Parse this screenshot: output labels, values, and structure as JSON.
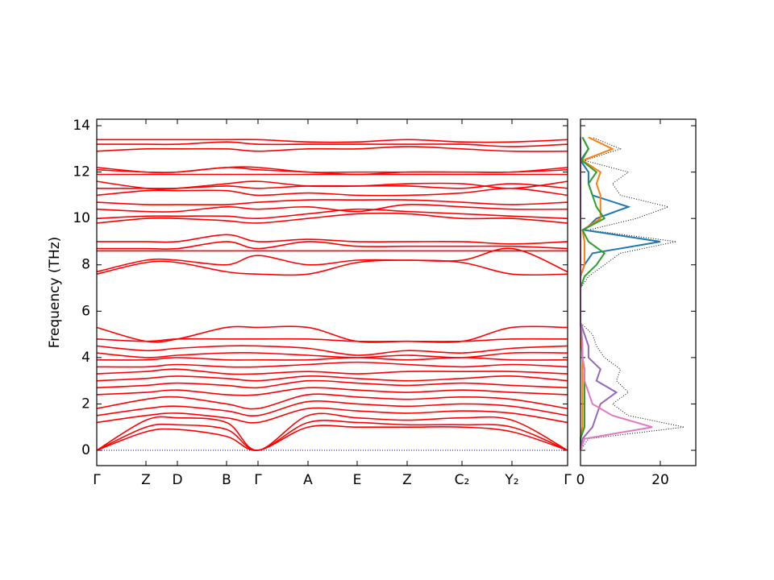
{
  "chart_data": [
    {
      "type": "band",
      "ylabel": "Frequency (THz)",
      "ylim": [
        -0.66,
        14.28
      ],
      "yticks": [
        0,
        2,
        4,
        6,
        8,
        10,
        12,
        14
      ],
      "xlim": [
        0,
        584
      ],
      "xticks": [
        {
          "value": 0,
          "label": "Γ"
        },
        {
          "value": 61,
          "label": "Z"
        },
        {
          "value": 100,
          "label": "D"
        },
        {
          "value": 161,
          "label": "B"
        },
        {
          "value": 200,
          "label": "Γ"
        },
        {
          "value": 262,
          "label": "A"
        },
        {
          "value": 323,
          "label": "E"
        },
        {
          "value": 385,
          "label": "Z"
        },
        {
          "value": 453,
          "label": "C₂"
        },
        {
          "value": 515,
          "label": "Y₂"
        },
        {
          "value": 584,
          "label": "Γ"
        }
      ],
      "x": [
        0,
        61,
        100,
        161,
        200,
        262,
        323,
        385,
        453,
        515,
        584
      ],
      "color": "#ff0000",
      "zero_line": {
        "value": 0,
        "color": "#0000ff"
      },
      "bands": [
        [
          0,
          0.8,
          0.9,
          0.6,
          0,
          1.0,
          1.0,
          1.0,
          1.0,
          0.8,
          0
        ],
        [
          0,
          1.0,
          1.1,
          0.9,
          0,
          1.2,
          1.2,
          1.1,
          1.1,
          1.0,
          0
        ],
        [
          0,
          1.3,
          1.4,
          1.2,
          0,
          1.5,
          1.4,
          1.3,
          1.4,
          1.3,
          0
        ],
        [
          1.2,
          1.5,
          1.6,
          1.4,
          1.2,
          1.8,
          1.7,
          1.6,
          1.7,
          1.6,
          1.2
        ],
        [
          1.5,
          1.8,
          1.9,
          1.7,
          1.5,
          2.1,
          2.0,
          1.9,
          2.0,
          1.9,
          1.5
        ],
        [
          1.8,
          2.2,
          2.3,
          2.0,
          1.8,
          2.4,
          2.3,
          2.2,
          2.3,
          2.2,
          1.8
        ],
        [
          2.4,
          2.5,
          2.6,
          2.4,
          2.4,
          2.7,
          2.6,
          2.5,
          2.6,
          2.5,
          2.4
        ],
        [
          2.7,
          2.8,
          2.9,
          2.8,
          2.7,
          3.0,
          2.9,
          2.8,
          2.9,
          2.8,
          2.7
        ],
        [
          3.0,
          3.1,
          3.2,
          3.1,
          3.0,
          3.2,
          3.1,
          3.0,
          3.1,
          3.2,
          3.0
        ],
        [
          3.3,
          3.4,
          3.5,
          3.3,
          3.3,
          3.4,
          3.3,
          3.4,
          3.4,
          3.4,
          3.3
        ],
        [
          3.6,
          3.6,
          3.7,
          3.6,
          3.6,
          3.7,
          3.8,
          3.7,
          3.6,
          3.7,
          3.6
        ],
        [
          3.9,
          3.9,
          4.0,
          3.9,
          3.9,
          3.9,
          4.0,
          3.9,
          4.0,
          3.9,
          3.9
        ],
        [
          4.2,
          4.0,
          4.1,
          4.2,
          4.2,
          4.1,
          4.0,
          4.1,
          4.0,
          4.2,
          4.2
        ],
        [
          4.5,
          4.3,
          4.4,
          4.5,
          4.5,
          4.4,
          4.1,
          4.3,
          4.2,
          4.4,
          4.5
        ],
        [
          4.8,
          4.7,
          4.8,
          4.8,
          4.8,
          4.8,
          4.7,
          4.7,
          4.7,
          4.8,
          4.8
        ],
        [
          5.3,
          4.7,
          4.8,
          5.3,
          5.3,
          5.3,
          4.7,
          4.7,
          4.7,
          5.3,
          5.3
        ],
        [
          7.6,
          8.1,
          8.1,
          7.7,
          7.6,
          7.6,
          8.1,
          8.2,
          8.1,
          7.6,
          7.6
        ],
        [
          7.7,
          8.2,
          8.2,
          8.0,
          8.4,
          8.0,
          8.2,
          8.2,
          8.2,
          8.7,
          7.7
        ],
        [
          8.6,
          8.6,
          8.6,
          8.6,
          8.6,
          8.6,
          8.6,
          8.6,
          8.6,
          8.6,
          8.6
        ],
        [
          8.7,
          8.7,
          8.7,
          9.0,
          8.7,
          9.0,
          8.8,
          8.8,
          8.8,
          8.8,
          8.7
        ],
        [
          9.0,
          9.0,
          9.0,
          9.3,
          9.0,
          9.1,
          9.0,
          9.0,
          9.0,
          8.9,
          9.0
        ],
        [
          9.8,
          10.0,
          10.0,
          9.9,
          9.8,
          10.0,
          10.2,
          10.2,
          10.0,
          10.0,
          9.8
        ],
        [
          10.0,
          10.1,
          10.1,
          10.1,
          10.0,
          10.2,
          10.4,
          10.3,
          10.2,
          10.1,
          10.0
        ],
        [
          10.4,
          10.3,
          10.3,
          10.5,
          10.4,
          10.5,
          10.3,
          10.6,
          10.5,
          10.4,
          10.4
        ],
        [
          10.7,
          10.6,
          10.6,
          10.6,
          10.7,
          10.8,
          10.8,
          10.8,
          10.7,
          10.6,
          10.7
        ],
        [
          11.0,
          11.2,
          11.2,
          11.2,
          11.0,
          11.1,
          11.0,
          11.0,
          11.1,
          11.3,
          11.0
        ],
        [
          11.3,
          11.3,
          11.3,
          11.4,
          11.3,
          11.4,
          11.4,
          11.4,
          11.3,
          11.5,
          11.3
        ],
        [
          11.6,
          11.3,
          11.3,
          11.5,
          11.6,
          11.4,
          11.4,
          11.5,
          11.5,
          11.3,
          11.6
        ],
        [
          11.9,
          11.9,
          11.9,
          11.9,
          11.9,
          11.9,
          11.9,
          11.9,
          11.9,
          11.9,
          11.9
        ],
        [
          12.1,
          12.0,
          12.0,
          12.2,
          12.1,
          12.0,
          11.9,
          12.0,
          12.0,
          12.0,
          12.1
        ],
        [
          12.2,
          12.0,
          12.0,
          12.2,
          12.2,
          12.0,
          12.0,
          12.0,
          12.0,
          12.0,
          12.2
        ],
        [
          12.9,
          13.0,
          13.0,
          13.0,
          12.9,
          13.0,
          13.0,
          13.1,
          13.0,
          12.9,
          12.9
        ],
        [
          13.2,
          13.2,
          13.2,
          13.3,
          13.2,
          13.2,
          13.2,
          13.2,
          13.2,
          13.1,
          13.2
        ],
        [
          13.4,
          13.4,
          13.4,
          13.4,
          13.4,
          13.3,
          13.3,
          13.4,
          13.3,
          13.3,
          13.4
        ]
      ]
    },
    {
      "type": "dos",
      "xlim": [
        0,
        28.9
      ],
      "xticks": [
        0,
        20
      ],
      "ylim": [
        -0.66,
        14.28
      ],
      "yticks": [
        0,
        2,
        4,
        6,
        8,
        10,
        12,
        14
      ],
      "frequencies": [
        0,
        0.5,
        1,
        1.5,
        2,
        2.5,
        3,
        3.5,
        4,
        4.5,
        5,
        5.5,
        6,
        6.5,
        7,
        7.5,
        8,
        8.5,
        9,
        9.5,
        10,
        10.5,
        11,
        11.5,
        12,
        12.5,
        13,
        13.5
      ],
      "series": [
        {
          "color": "#000000",
          "dotted": true,
          "values": [
            0,
            2,
            26,
            12,
            8,
            12,
            9,
            10,
            6,
            4,
            3,
            0,
            0,
            0,
            0,
            2,
            6,
            10,
            24,
            2,
            14,
            22,
            10,
            8,
            12,
            1,
            10,
            3
          ]
        },
        {
          "color": "#1f77b4",
          "values": [
            0,
            0,
            0.5,
            0.5,
            0.5,
            0.5,
            0.5,
            0.5,
            0.5,
            0.3,
            0.3,
            0,
            0,
            0,
            0,
            0,
            1,
            3,
            20,
            1,
            4,
            12,
            3,
            2,
            2,
            0,
            2,
            0.5
          ]
        },
        {
          "color": "#ff7f0e",
          "values": [
            0,
            0,
            0.5,
            0.5,
            0.5,
            0.5,
            0.5,
            0.5,
            0.5,
            0.3,
            0.3,
            0,
            0,
            0,
            0,
            0,
            1,
            1,
            1,
            0.5,
            5,
            5,
            5,
            4,
            5,
            0.5,
            8,
            2
          ]
        },
        {
          "color": "#2ca02c",
          "values": [
            0,
            0,
            1,
            1,
            1,
            1,
            1,
            1,
            0.5,
            0.5,
            0.3,
            0,
            0,
            0,
            0,
            1,
            4,
            6,
            2,
            0.5,
            6,
            4,
            3,
            2,
            4,
            0.3,
            2,
            0.5
          ]
        },
        {
          "color": "#9467bd",
          "values": [
            0,
            0.5,
            3,
            4,
            5,
            9,
            4,
            5,
            2,
            2,
            1,
            0,
            0,
            0,
            0,
            0,
            0,
            0,
            0,
            0,
            0,
            0,
            0,
            0,
            0,
            0,
            0,
            0
          ]
        },
        {
          "color": "#e377c2",
          "values": [
            0,
            1,
            18,
            8,
            3,
            2,
            1,
            1,
            0.5,
            0.5,
            0.3,
            0,
            0,
            0,
            0,
            0,
            0,
            0,
            0,
            0,
            0,
            0,
            0,
            0,
            0,
            0,
            0,
            0
          ]
        }
      ]
    }
  ]
}
